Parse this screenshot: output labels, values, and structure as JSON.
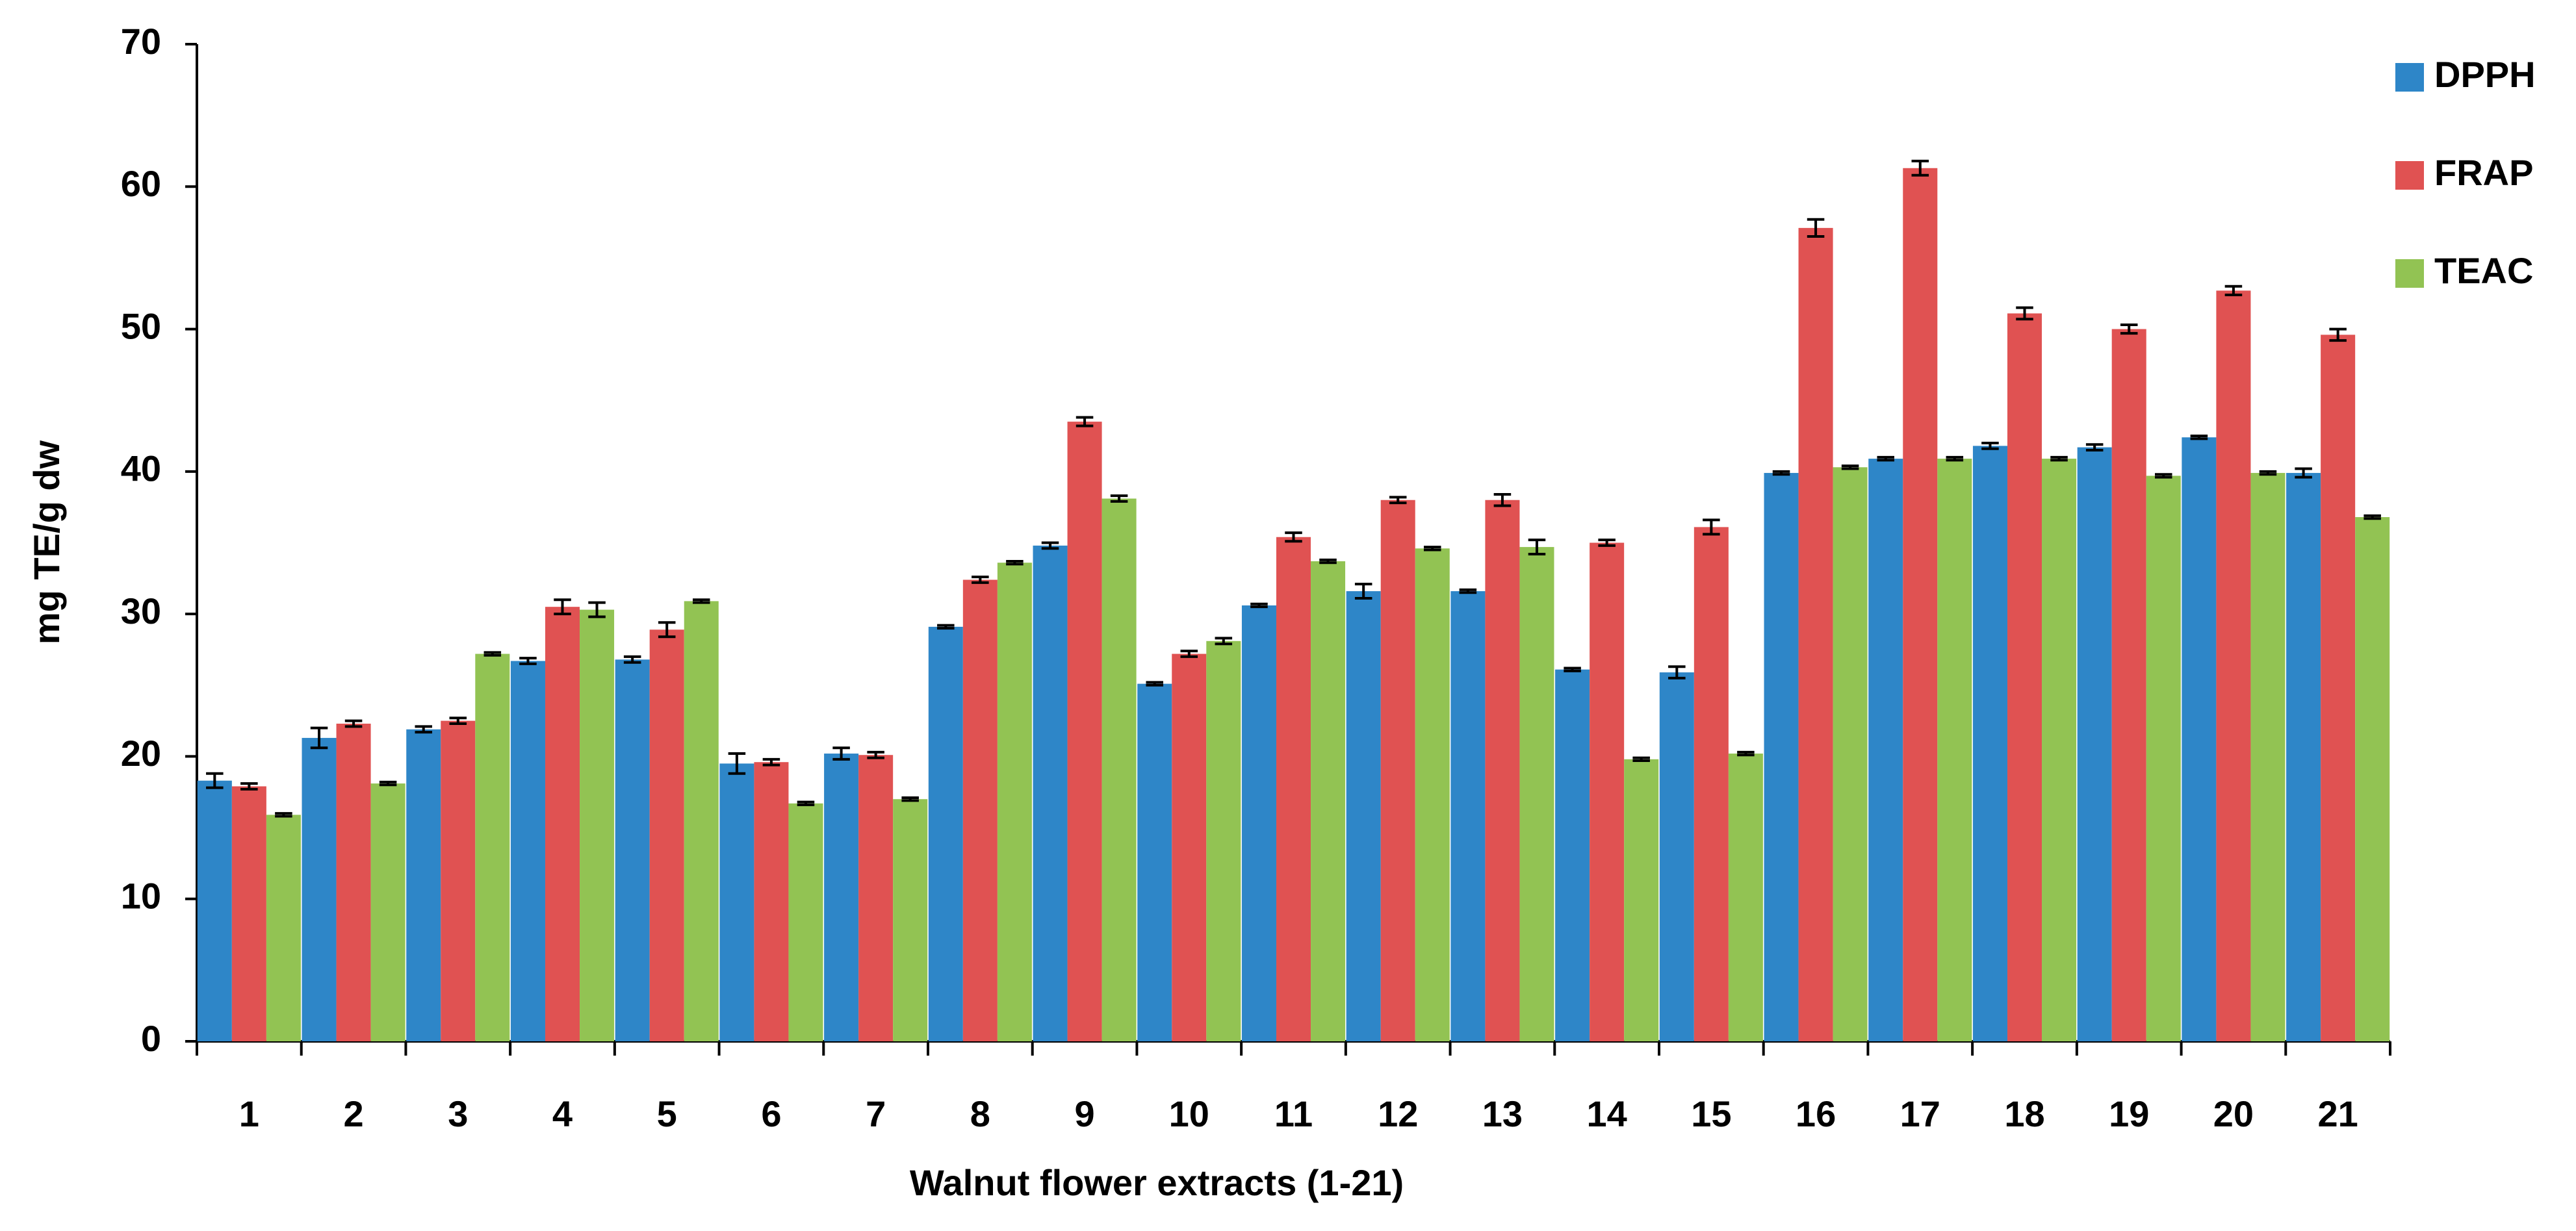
{
  "chart_data": {
    "type": "bar",
    "x_label": "Walnut flower extracts (1-21)",
    "y_label": "mg TE/g dw",
    "categories": [
      "1",
      "2",
      "3",
      "4",
      "5",
      "6",
      "7",
      "8",
      "9",
      "10",
      "11",
      "12",
      "13",
      "14",
      "15",
      "16",
      "17",
      "18",
      "19",
      "20",
      "21"
    ],
    "series": [
      {
        "name": "DPPH",
        "color": "#2e86c8",
        "values": [
          18.3,
          21.3,
          21.9,
          26.7,
          26.8,
          19.5,
          20.2,
          29.1,
          34.8,
          25.1,
          30.6,
          31.6,
          31.6,
          26.1,
          25.9,
          39.9,
          40.9,
          41.8,
          41.7,
          42.4,
          39.9
        ],
        "errors": [
          0.5,
          0.7,
          0.2,
          0.2,
          0.2,
          0.7,
          0.4,
          0.1,
          0.2,
          0.1,
          0.1,
          0.5,
          0.1,
          0.1,
          0.4,
          0.1,
          0.1,
          0.2,
          0.2,
          0.1,
          0.3
        ]
      },
      {
        "name": "FRAP",
        "color": "#e05252",
        "values": [
          17.9,
          22.3,
          22.5,
          30.5,
          28.9,
          19.6,
          20.1,
          32.4,
          43.5,
          27.2,
          35.4,
          38.0,
          38.0,
          35.0,
          36.1,
          57.1,
          61.3,
          51.1,
          50.0,
          52.7,
          49.6
        ],
        "errors": [
          0.2,
          0.2,
          0.2,
          0.5,
          0.5,
          0.2,
          0.2,
          0.2,
          0.3,
          0.2,
          0.3,
          0.2,
          0.4,
          0.2,
          0.5,
          0.6,
          0.5,
          0.4,
          0.3,
          0.3,
          0.4
        ]
      },
      {
        "name": "TEAC",
        "color": "#92c353",
        "values": [
          15.9,
          18.1,
          27.2,
          30.3,
          30.9,
          16.7,
          17.0,
          33.6,
          38.1,
          28.1,
          33.7,
          34.6,
          34.7,
          19.8,
          20.2,
          40.3,
          40.9,
          40.9,
          39.7,
          39.9,
          36.8
        ],
        "errors": [
          0.1,
          0.1,
          0.1,
          0.5,
          0.1,
          0.1,
          0.1,
          0.1,
          0.2,
          0.2,
          0.1,
          0.1,
          0.5,
          0.1,
          0.1,
          0.1,
          0.1,
          0.1,
          0.1,
          0.1,
          0.1
        ]
      }
    ],
    "ylim": [
      0,
      70
    ],
    "yticks": [
      0,
      10,
      20,
      30,
      40,
      50,
      60,
      70
    ],
    "grid": false,
    "legend": "top-right"
  }
}
